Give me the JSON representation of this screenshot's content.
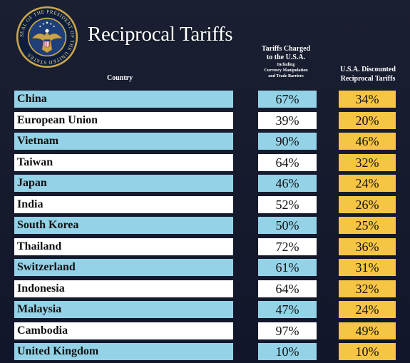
{
  "title": "Reciprocal Tariffs",
  "seal": {
    "text": "SEAL OF THE PRESIDENT OF THE UNITED STATES",
    "colors": {
      "ring": "#0d1d3d",
      "gold": "#c9a44a",
      "inner": "#1f3f7a"
    }
  },
  "headers": {
    "country": "Country",
    "charged_main": [
      "Tariffs Charged",
      "to the U.S.A."
    ],
    "charged_sub": [
      "Including",
      "Currency Manipulation",
      "and Trade Barriers"
    ],
    "discounted": [
      "U.S.A. Discounted",
      "Reciprocal Tariffs"
    ]
  },
  "colors": {
    "blue_row": "#93d2e7",
    "white_row": "#ffffff",
    "discounted": "#f6c544"
  },
  "rows": [
    {
      "country": "China",
      "charged": "67%",
      "discounted": "34%"
    },
    {
      "country": "European Union",
      "charged": "39%",
      "discounted": "20%"
    },
    {
      "country": "Vietnam",
      "charged": "90%",
      "discounted": "46%"
    },
    {
      "country": "Taiwan",
      "charged": "64%",
      "discounted": "32%"
    },
    {
      "country": "Japan",
      "charged": "46%",
      "discounted": "24%"
    },
    {
      "country": "India",
      "charged": "52%",
      "discounted": "26%"
    },
    {
      "country": "South Korea",
      "charged": "50%",
      "discounted": "25%"
    },
    {
      "country": "Thailand",
      "charged": "72%",
      "discounted": "36%"
    },
    {
      "country": "Switzerland",
      "charged": "61%",
      "discounted": "31%"
    },
    {
      "country": "Indonesia",
      "charged": "64%",
      "discounted": "32%"
    },
    {
      "country": "Malaysia",
      "charged": "47%",
      "discounted": "24%"
    },
    {
      "country": "Cambodia",
      "charged": "97%",
      "discounted": "49%"
    },
    {
      "country": "United Kingdom",
      "charged": "10%",
      "discounted": "10%"
    }
  ]
}
